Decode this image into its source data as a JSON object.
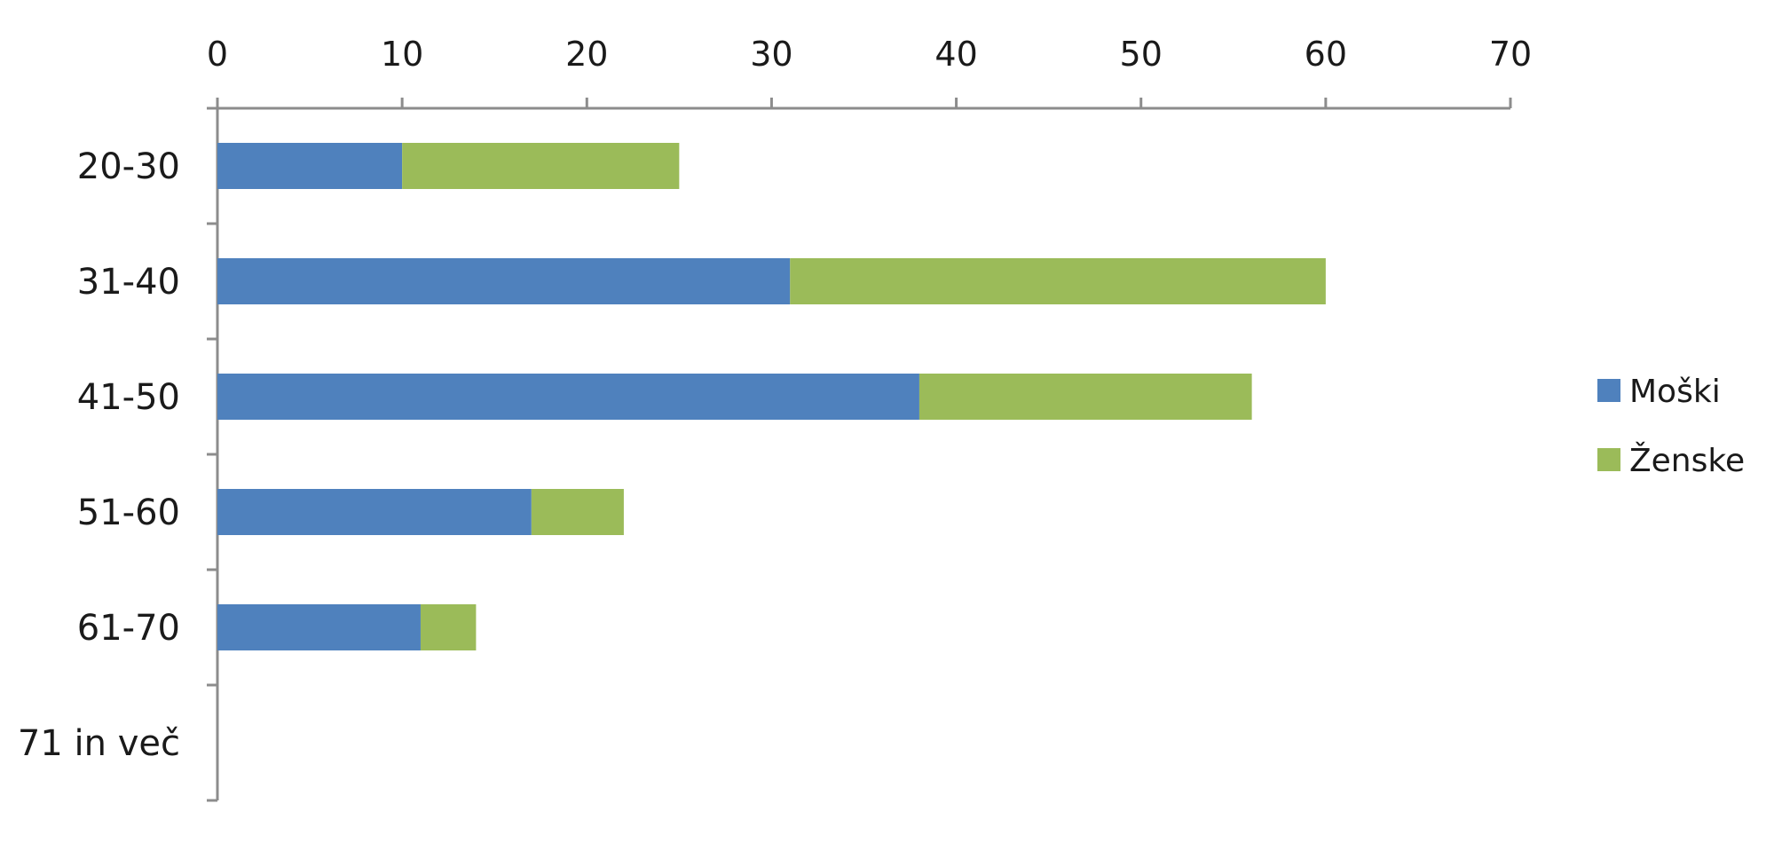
{
  "chart_data": {
    "type": "bar",
    "orientation": "horizontal",
    "stacked": true,
    "categories": [
      "20-30",
      "31-40",
      "41-50",
      "51-60",
      "61-70",
      "71 in več"
    ],
    "series": [
      {
        "name": "Moški",
        "values": [
          10,
          31,
          38,
          17,
          11,
          0
        ],
        "color": "#4f81bd"
      },
      {
        "name": "Ženske",
        "values": [
          15,
          29,
          18,
          5,
          3,
          0
        ],
        "color": "#9bbb59"
      }
    ],
    "xlim": [
      0,
      70
    ],
    "xticks": [
      0,
      10,
      20,
      30,
      40,
      50,
      60,
      70
    ],
    "x_axis_position": "top",
    "grid": false,
    "legend": "right",
    "title": "",
    "xlabel": "",
    "ylabel": ""
  }
}
